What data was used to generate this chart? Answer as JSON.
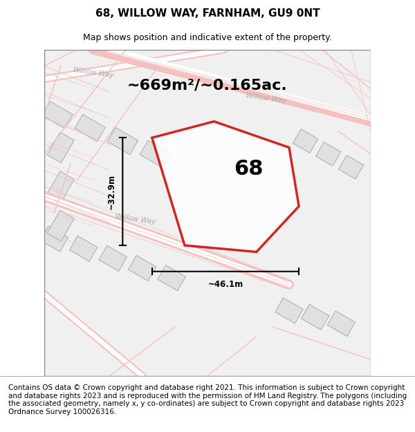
{
  "title": "68, WILLOW WAY, FARNHAM, GU9 0NT",
  "subtitle": "Map shows position and indicative extent of the property.",
  "area_text": "~669m²/~0.165ac.",
  "property_number": "68",
  "dim_width": "~46.1m",
  "dim_height": "~32.9m",
  "street_label1": "Willow Way",
  "street_label2": "Willow Way",
  "footer": "Contains OS data © Crown copyright and database right 2021. This information is subject to Crown copyright and database rights 2023 and is reproduced with the permission of HM Land Registry. The polygons (including the associated geometry, namely x, y co-ordinates) are subject to Crown copyright and database rights 2023 Ordnance Survey 100026316.",
  "bg_color": "#f5f5f5",
  "map_bg": "#f0f0f0",
  "road_color_light": "#f5c0c0",
  "road_color_dark": "#e08080",
  "building_fill": "#e8e8e8",
  "building_edge": "#cccccc",
  "property_color": "#cc0000",
  "property_fill": "#ffffff",
  "dim_color": "#111111",
  "title_fontsize": 11,
  "subtitle_fontsize": 9,
  "area_fontsize": 16,
  "number_fontsize": 22,
  "footer_fontsize": 7.5,
  "map_xlim": [
    0,
    1
  ],
  "map_ylim": [
    0,
    1
  ]
}
